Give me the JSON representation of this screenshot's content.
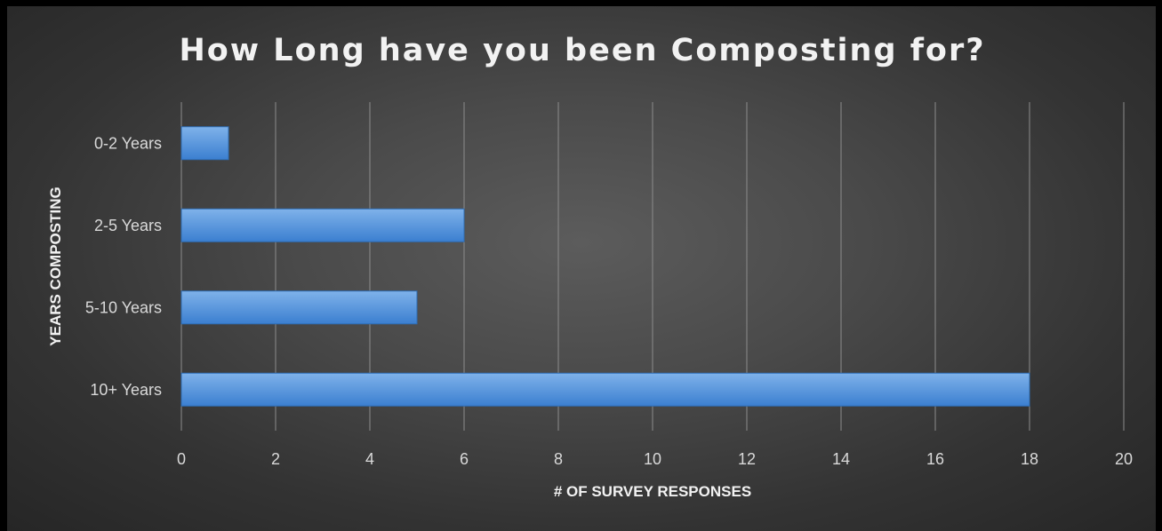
{
  "chart_data": {
    "type": "bar",
    "orientation": "horizontal",
    "title": "How Long have you been Composting for?",
    "xlabel": "# OF SURVEY RESPONSES",
    "ylabel": "YEARS COMPOSTING",
    "categories": [
      "0-2 Years",
      "2-5 Years",
      "5-10 Years",
      "10+ Years"
    ],
    "values": [
      1,
      6,
      5,
      18
    ],
    "xlim": [
      0,
      20
    ],
    "xticks": [
      0,
      2,
      4,
      6,
      8,
      10,
      12,
      14,
      16,
      18,
      20
    ],
    "grid": "vertical",
    "legend": "none",
    "colors": {
      "bar_top": "#7fb2ea",
      "bar_bottom": "#3b7fd0",
      "background": "#4a4a4a",
      "frame": "#000000"
    }
  }
}
